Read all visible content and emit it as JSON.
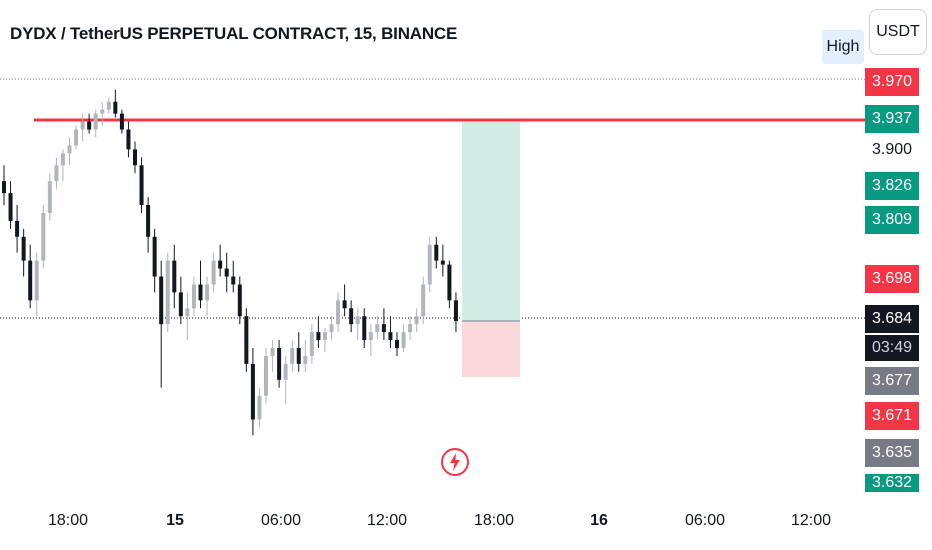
{
  "header": {
    "title": "DYDX / TetherUS PERPETUAL CONTRACT, 15, BINANCE",
    "currency": "USDT",
    "high_label": "High"
  },
  "colors": {
    "up": "#b2b5be",
    "down": "#131722",
    "resistance": "#f23645",
    "target_zone": "#d1ede6",
    "stop_zone": "#fbd8dc",
    "red_label": "#f23645",
    "green_label": "#089981",
    "gray_label": "#787b86",
    "dark_label": "#131722"
  },
  "chart_data": {
    "type": "candlestick",
    "title": "DYDX / TetherUS PERPETUAL CONTRACT, 15, BINANCE",
    "x_tick_labels": [
      "18:00",
      "15",
      "06:00",
      "12:00",
      "18:00",
      "16",
      "06:00",
      "12:00"
    ],
    "price_axis_labels": [
      {
        "value": "3.970",
        "style": "red"
      },
      {
        "value": "3.937",
        "style": "green"
      },
      {
        "value": "3.900",
        "style": "plain"
      },
      {
        "value": "3.826",
        "style": "green"
      },
      {
        "value": "3.809",
        "style": "green"
      },
      {
        "value": "3.698",
        "style": "red"
      },
      {
        "value": "3.684",
        "style": "dark"
      },
      {
        "value": "3.677",
        "style": "gray"
      },
      {
        "value": "3.671",
        "style": "red"
      },
      {
        "value": "3.635",
        "style": "gray"
      },
      {
        "value": "3.632",
        "style": "green"
      }
    ],
    "countdown": "03:49",
    "resistance_level": 3.937,
    "current_price": 3.684,
    "position": {
      "entry": 3.684,
      "target": 3.937,
      "stop": 3.655
    },
    "candles_ohlc": [
      [
        3.86,
        3.88,
        3.83,
        3.845
      ],
      [
        3.845,
        3.86,
        3.8,
        3.81
      ],
      [
        3.81,
        3.83,
        3.77,
        3.79
      ],
      [
        3.79,
        3.8,
        3.74,
        3.76
      ],
      [
        3.76,
        3.78,
        3.7,
        3.71
      ],
      [
        3.71,
        3.77,
        3.69,
        3.76
      ],
      [
        3.76,
        3.83,
        3.75,
        3.82
      ],
      [
        3.82,
        3.87,
        3.81,
        3.86
      ],
      [
        3.86,
        3.89,
        3.85,
        3.88
      ],
      [
        3.88,
        3.9,
        3.86,
        3.895
      ],
      [
        3.895,
        3.915,
        3.88,
        3.905
      ],
      [
        3.905,
        3.93,
        3.9,
        3.925
      ],
      [
        3.925,
        3.945,
        3.91,
        3.935
      ],
      [
        3.935,
        3.945,
        3.92,
        3.925
      ],
      [
        3.925,
        3.95,
        3.915,
        3.945
      ],
      [
        3.945,
        3.96,
        3.93,
        3.95
      ],
      [
        3.95,
        3.965,
        3.945,
        3.96
      ],
      [
        3.96,
        3.975,
        3.94,
        3.945
      ],
      [
        3.945,
        3.95,
        3.92,
        3.925
      ],
      [
        3.925,
        3.935,
        3.89,
        3.9
      ],
      [
        3.9,
        3.91,
        3.87,
        3.88
      ],
      [
        3.88,
        3.89,
        3.82,
        3.83
      ],
      [
        3.83,
        3.84,
        3.77,
        3.79
      ],
      [
        3.79,
        3.8,
        3.72,
        3.74
      ],
      [
        3.74,
        3.76,
        3.6,
        3.68
      ],
      [
        3.68,
        3.77,
        3.67,
        3.76
      ],
      [
        3.76,
        3.78,
        3.7,
        3.72
      ],
      [
        3.72,
        3.74,
        3.68,
        3.69
      ],
      [
        3.69,
        3.72,
        3.66,
        3.7
      ],
      [
        3.7,
        3.74,
        3.69,
        3.73
      ],
      [
        3.73,
        3.76,
        3.7,
        3.71
      ],
      [
        3.71,
        3.74,
        3.69,
        3.73
      ],
      [
        3.73,
        3.77,
        3.72,
        3.76
      ],
      [
        3.76,
        3.78,
        3.74,
        3.75
      ],
      [
        3.75,
        3.77,
        3.72,
        3.74
      ],
      [
        3.74,
        3.76,
        3.72,
        3.73
      ],
      [
        3.73,
        3.74,
        3.68,
        3.69
      ],
      [
        3.69,
        3.7,
        3.62,
        3.63
      ],
      [
        3.63,
        3.65,
        3.54,
        3.56
      ],
      [
        3.56,
        3.6,
        3.55,
        3.59
      ],
      [
        3.59,
        3.65,
        3.58,
        3.64
      ],
      [
        3.64,
        3.66,
        3.62,
        3.65
      ],
      [
        3.65,
        3.66,
        3.6,
        3.61
      ],
      [
        3.61,
        3.64,
        3.58,
        3.63
      ],
      [
        3.63,
        3.66,
        3.62,
        3.65
      ],
      [
        3.65,
        3.67,
        3.62,
        3.63
      ],
      [
        3.63,
        3.66,
        3.62,
        3.64
      ],
      [
        3.64,
        3.68,
        3.63,
        3.67
      ],
      [
        3.67,
        3.69,
        3.65,
        3.66
      ],
      [
        3.66,
        3.675,
        3.645,
        3.67
      ],
      [
        3.67,
        3.69,
        3.66,
        3.68
      ],
      [
        3.68,
        3.72,
        3.67,
        3.71
      ],
      [
        3.71,
        3.73,
        3.69,
        3.7
      ],
      [
        3.7,
        3.71,
        3.67,
        3.68
      ],
      [
        3.68,
        3.7,
        3.66,
        3.69
      ],
      [
        3.69,
        3.7,
        3.65,
        3.66
      ],
      [
        3.66,
        3.68,
        3.64,
        3.67
      ],
      [
        3.67,
        3.69,
        3.66,
        3.68
      ],
      [
        3.68,
        3.7,
        3.66,
        3.67
      ],
      [
        3.67,
        3.69,
        3.65,
        3.66
      ],
      [
        3.66,
        3.67,
        3.64,
        3.65
      ],
      [
        3.65,
        3.68,
        3.645,
        3.67
      ],
      [
        3.67,
        3.69,
        3.66,
        3.68
      ],
      [
        3.68,
        3.7,
        3.67,
        3.69
      ],
      [
        3.69,
        3.74,
        3.68,
        3.73
      ],
      [
        3.73,
        3.79,
        3.72,
        3.78
      ],
      [
        3.78,
        3.79,
        3.75,
        3.76
      ],
      [
        3.76,
        3.78,
        3.74,
        3.755
      ],
      [
        3.755,
        3.76,
        3.7,
        3.71
      ],
      [
        3.71,
        3.72,
        3.67,
        3.684
      ]
    ]
  }
}
